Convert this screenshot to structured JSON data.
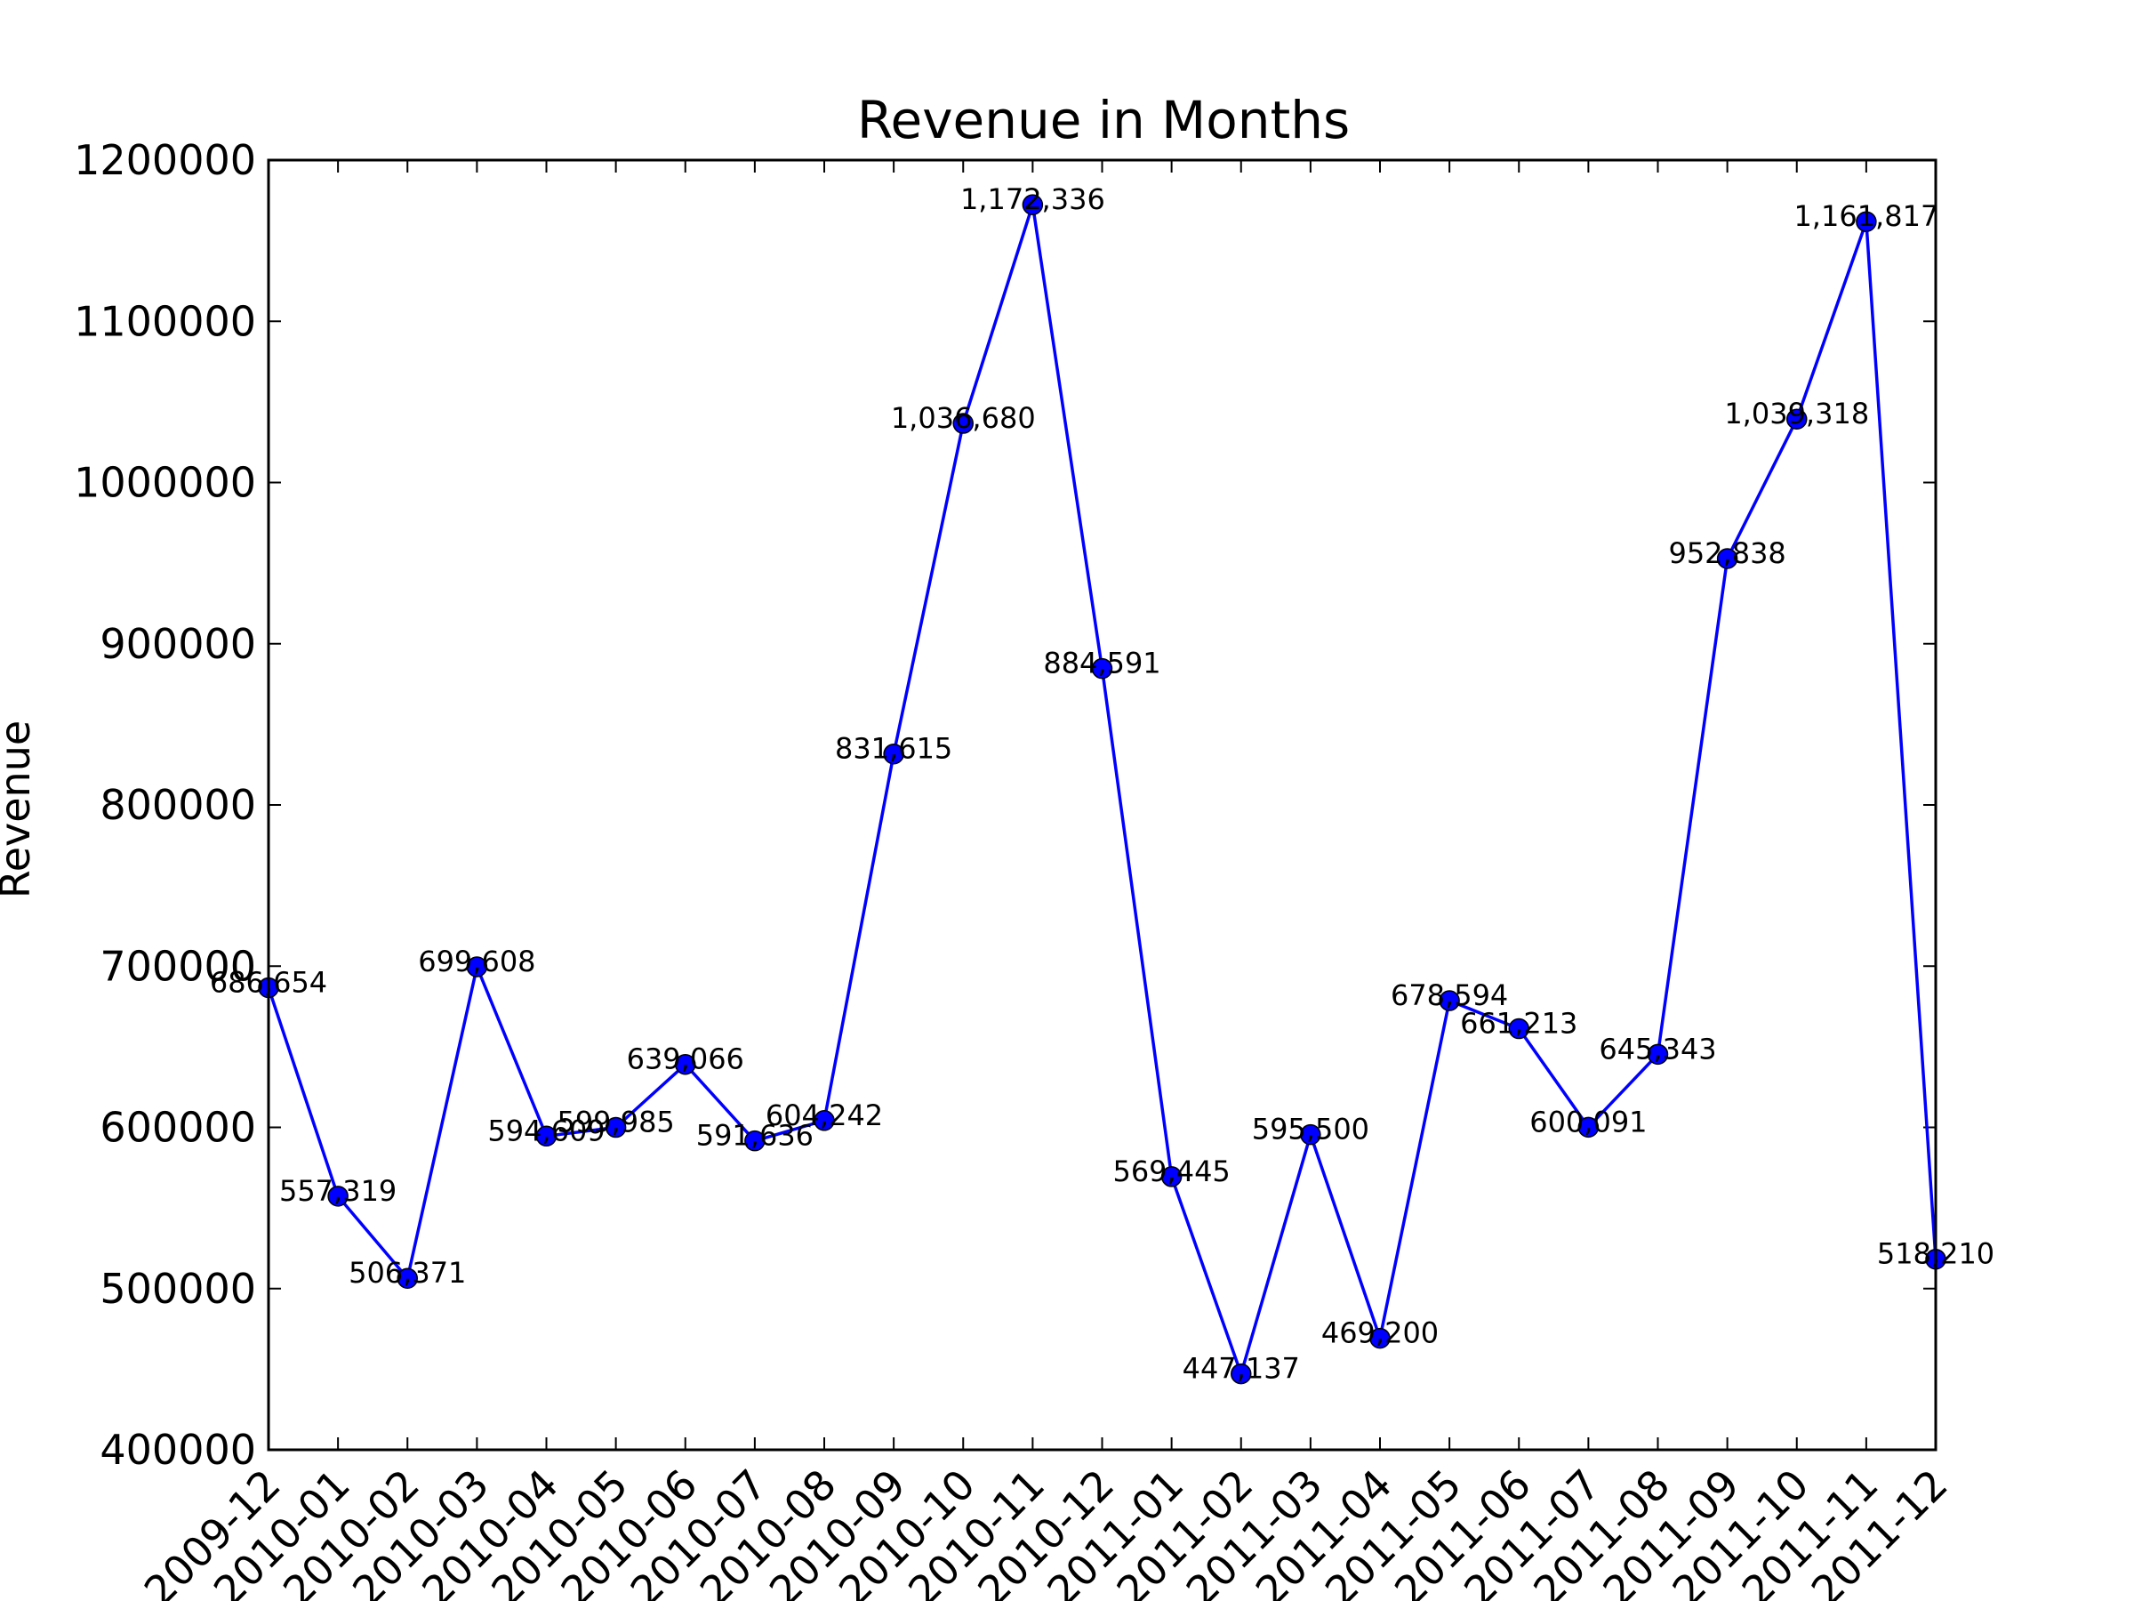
{
  "chart_data": {
    "type": "line",
    "title": "Revenue in Months",
    "xlabel": "",
    "ylabel": "Revenue",
    "ylim": [
      400000,
      1200000
    ],
    "yticks": [
      400000,
      500000,
      600000,
      700000,
      800000,
      900000,
      1000000,
      1100000,
      1200000
    ],
    "ytick_labels": [
      "400000",
      "500000",
      "600000",
      "700000",
      "800000",
      "900000",
      "1000000",
      "1100000",
      "1200000"
    ],
    "grid": false,
    "line_color": "#0000ff",
    "marker_color": "#0000ff",
    "categories": [
      "2009-12",
      "2010-01",
      "2010-02",
      "2010-03",
      "2010-04",
      "2010-05",
      "2010-06",
      "2010-07",
      "2010-08",
      "2010-09",
      "2010-10",
      "2010-11",
      "2010-12",
      "2011-01",
      "2011-02",
      "2011-03",
      "2011-04",
      "2011-05",
      "2011-06",
      "2011-07",
      "2011-08",
      "2011-09",
      "2011-10",
      "2011-11",
      "2011-12"
    ],
    "values": [
      686654,
      557319,
      506371,
      699608,
      594609,
      599985,
      639066,
      591636,
      604242,
      831615,
      1036680,
      1172336,
      884591,
      569445,
      447137,
      595500,
      469200,
      678594,
      661213,
      600091,
      645343,
      952838,
      1039318,
      1161817,
      518210
    ],
    "data_labels": [
      "686,654",
      "557,319",
      "506,371",
      "699,608",
      "594,609",
      "599,985",
      "639,066",
      "591,636",
      "604,242",
      "831,615",
      "1,036,680",
      "1,172,336",
      "884,591",
      "569,445",
      "447,137",
      "595,500",
      "469,200",
      "678,594",
      "661,213",
      "600,091",
      "645,343",
      "952,838",
      "1,039,318",
      "1,161,817",
      "518,210"
    ]
  }
}
